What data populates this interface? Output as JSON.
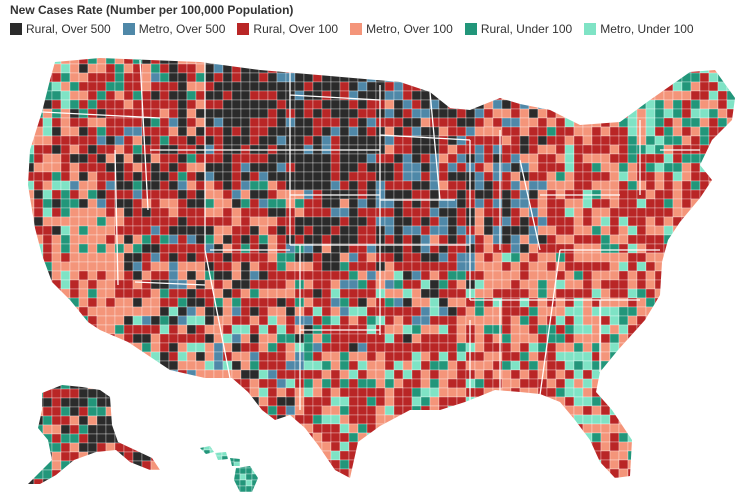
{
  "title": "New Cases Rate (Number per 100,000 Population)",
  "legend": [
    {
      "label": "Rural, Over 500",
      "color": "#2b2b2b"
    },
    {
      "label": "Metro, Over 500",
      "color": "#4f88a8"
    },
    {
      "label": "Rural, Over 100",
      "color": "#b92626"
    },
    {
      "label": "Metro, Over 100",
      "color": "#f4957a"
    },
    {
      "label": "Rural, Under 100",
      "color": "#22967a"
    },
    {
      "label": "Metro, Under 100",
      "color": "#7fe3c5"
    }
  ],
  "border_color": "#ffffff"
}
